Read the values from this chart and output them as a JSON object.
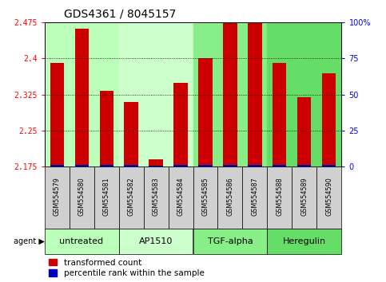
{
  "title": "GDS4361 / 8045157",
  "samples": [
    "GSM554579",
    "GSM554580",
    "GSM554581",
    "GSM554582",
    "GSM554583",
    "GSM554584",
    "GSM554585",
    "GSM554586",
    "GSM554587",
    "GSM554588",
    "GSM554589",
    "GSM554590"
  ],
  "red_values": [
    2.39,
    2.462,
    2.332,
    2.31,
    2.19,
    2.35,
    2.4,
    2.474,
    2.474,
    2.39,
    2.32,
    2.37
  ],
  "blue_percentiles": [
    4,
    4,
    4,
    4,
    2,
    4,
    4,
    4,
    4,
    4,
    4,
    4
  ],
  "ymin": 2.175,
  "ymax": 2.475,
  "yticks_left": [
    2.175,
    2.25,
    2.325,
    2.4,
    2.475
  ],
  "ytick_labels_left": [
    "2.175",
    "2.25",
    "2.325",
    "2.4",
    "2.475"
  ],
  "right_yticks": [
    0,
    25,
    50,
    75,
    100
  ],
  "right_yticklabels": [
    "0",
    "25",
    "50",
    "75",
    "100%"
  ],
  "agent_groups": [
    {
      "label": "untreated",
      "start": 0,
      "end": 2,
      "color": "#bbffbb"
    },
    {
      "label": "AP1510",
      "start": 3,
      "end": 5,
      "color": "#ccffcc"
    },
    {
      "label": "TGF-alpha",
      "start": 6,
      "end": 8,
      "color": "#88ee88"
    },
    {
      "label": "Heregulin",
      "start": 9,
      "end": 11,
      "color": "#66dd66"
    }
  ],
  "bar_color": "#cc0000",
  "blue_color": "#0000bb",
  "grid_color": "#000000",
  "sample_box_color": "#d0d0d0",
  "title_fontsize": 10,
  "tick_fontsize": 7,
  "sample_fontsize": 5.8,
  "agent_fontsize": 8,
  "legend_fontsize": 7.5,
  "bar_width": 0.55
}
